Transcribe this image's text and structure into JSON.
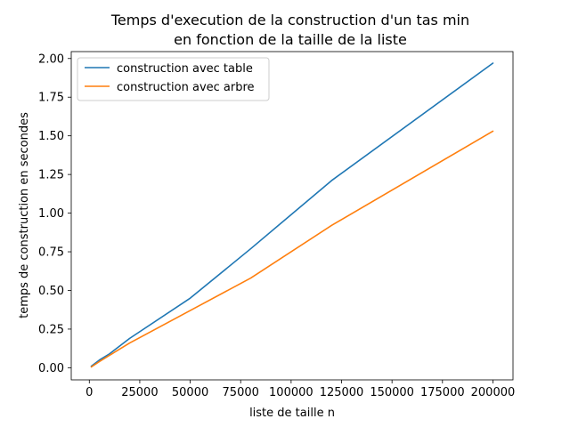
{
  "chart_data": {
    "type": "line",
    "title_line1": "Temps d'execution de la construction d'un tas min",
    "title_line2": "en fonction de la taille de la liste",
    "xlabel": "liste de taille n",
    "ylabel": "temps de construction en secondes",
    "xlim": [
      -8950,
      209950
    ],
    "ylim": [
      -0.0783,
      2.0447
    ],
    "xticks": [
      0,
      25000,
      50000,
      75000,
      100000,
      125000,
      150000,
      175000,
      200000
    ],
    "xtick_labels": [
      "0",
      "25000",
      "50000",
      "75000",
      "100000",
      "125000",
      "150000",
      "175000",
      "200000"
    ],
    "yticks": [
      0.0,
      0.25,
      0.5,
      0.75,
      1.0,
      1.25,
      1.5,
      1.75,
      2.0
    ],
    "ytick_labels": [
      "0.00",
      "0.25",
      "0.50",
      "0.75",
      "1.00",
      "1.25",
      "1.50",
      "1.75",
      "2.00"
    ],
    "grid": false,
    "legend_position": "top-left",
    "series": [
      {
        "name": "construction avec table",
        "color": "#1f77b4",
        "x": [
          1000,
          5000,
          10000,
          20000,
          50000,
          80000,
          120000,
          200000
        ],
        "y": [
          0.01,
          0.05,
          0.09,
          0.19,
          0.45,
          0.77,
          1.21,
          1.97
        ]
      },
      {
        "name": "construction avec arbre",
        "color": "#ff7f0e",
        "x": [
          1000,
          5000,
          10000,
          20000,
          50000,
          80000,
          120000,
          200000
        ],
        "y": [
          0.005,
          0.04,
          0.08,
          0.16,
          0.37,
          0.58,
          0.92,
          1.53
        ]
      }
    ]
  }
}
